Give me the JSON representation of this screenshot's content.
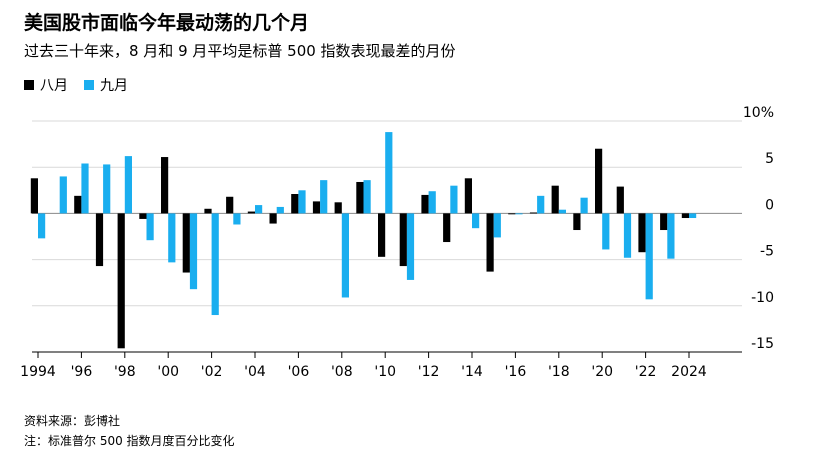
{
  "title": "美国股市面临今年最动荡的几个月",
  "subtitle": "过去三十年来，8 月和 9 月平均是标普 500 指数表现最差的月份",
  "source": "资料来源：彭博社",
  "note": "注：标准普尔 500 指数月度百分比变化",
  "colors": {
    "august": "#000000",
    "september": "#1aaeef",
    "grid": "#d9d9d9"
  },
  "chart_data": {
    "type": "bar",
    "x": [
      1994,
      1995,
      1996,
      1997,
      1998,
      1999,
      2000,
      2001,
      2002,
      2003,
      2004,
      2005,
      2006,
      2007,
      2008,
      2009,
      2010,
      2011,
      2012,
      2013,
      2014,
      2015,
      2016,
      2017,
      2018,
      2019,
      2020,
      2021,
      2022,
      2023,
      2024
    ],
    "series": [
      {
        "name": "八月",
        "values": [
          3.8,
          0.0,
          1.9,
          -5.7,
          -14.6,
          -0.6,
          6.1,
          -6.4,
          0.5,
          1.8,
          0.2,
          -1.1,
          2.1,
          1.3,
          1.2,
          3.4,
          -4.7,
          -5.7,
          2.0,
          -3.1,
          3.8,
          -6.3,
          -0.1,
          0.1,
          3.0,
          -1.8,
          7.0,
          2.9,
          -4.2,
          -1.8,
          -0.5
        ]
      },
      {
        "name": "九月",
        "values": [
          -2.7,
          4.0,
          5.4,
          5.3,
          6.2,
          -2.9,
          -5.3,
          -8.2,
          -11.0,
          -1.2,
          0.9,
          0.7,
          2.5,
          3.6,
          -9.1,
          3.6,
          8.8,
          -7.2,
          2.4,
          3.0,
          -1.6,
          -2.6,
          -0.1,
          1.9,
          0.4,
          1.7,
          -3.9,
          -4.8,
          -9.3,
          -4.9,
          -0.5
        ]
      }
    ],
    "y_ticks": [
      10,
      5,
      0,
      -5,
      -10,
      -15
    ],
    "y_tick_labels": [
      "10%",
      "5",
      "0",
      "-5",
      "-10",
      "-15"
    ],
    "x_tick_labels": [
      "1994",
      "'96",
      "'98",
      "'00",
      "'02",
      "'04",
      "'06",
      "'08",
      "'10",
      "'12",
      "'14",
      "'16",
      "'18",
      "'20",
      "'22",
      "2024"
    ],
    "ylim": [
      -15,
      10
    ],
    "grid": true,
    "legend_position": "top-left"
  }
}
